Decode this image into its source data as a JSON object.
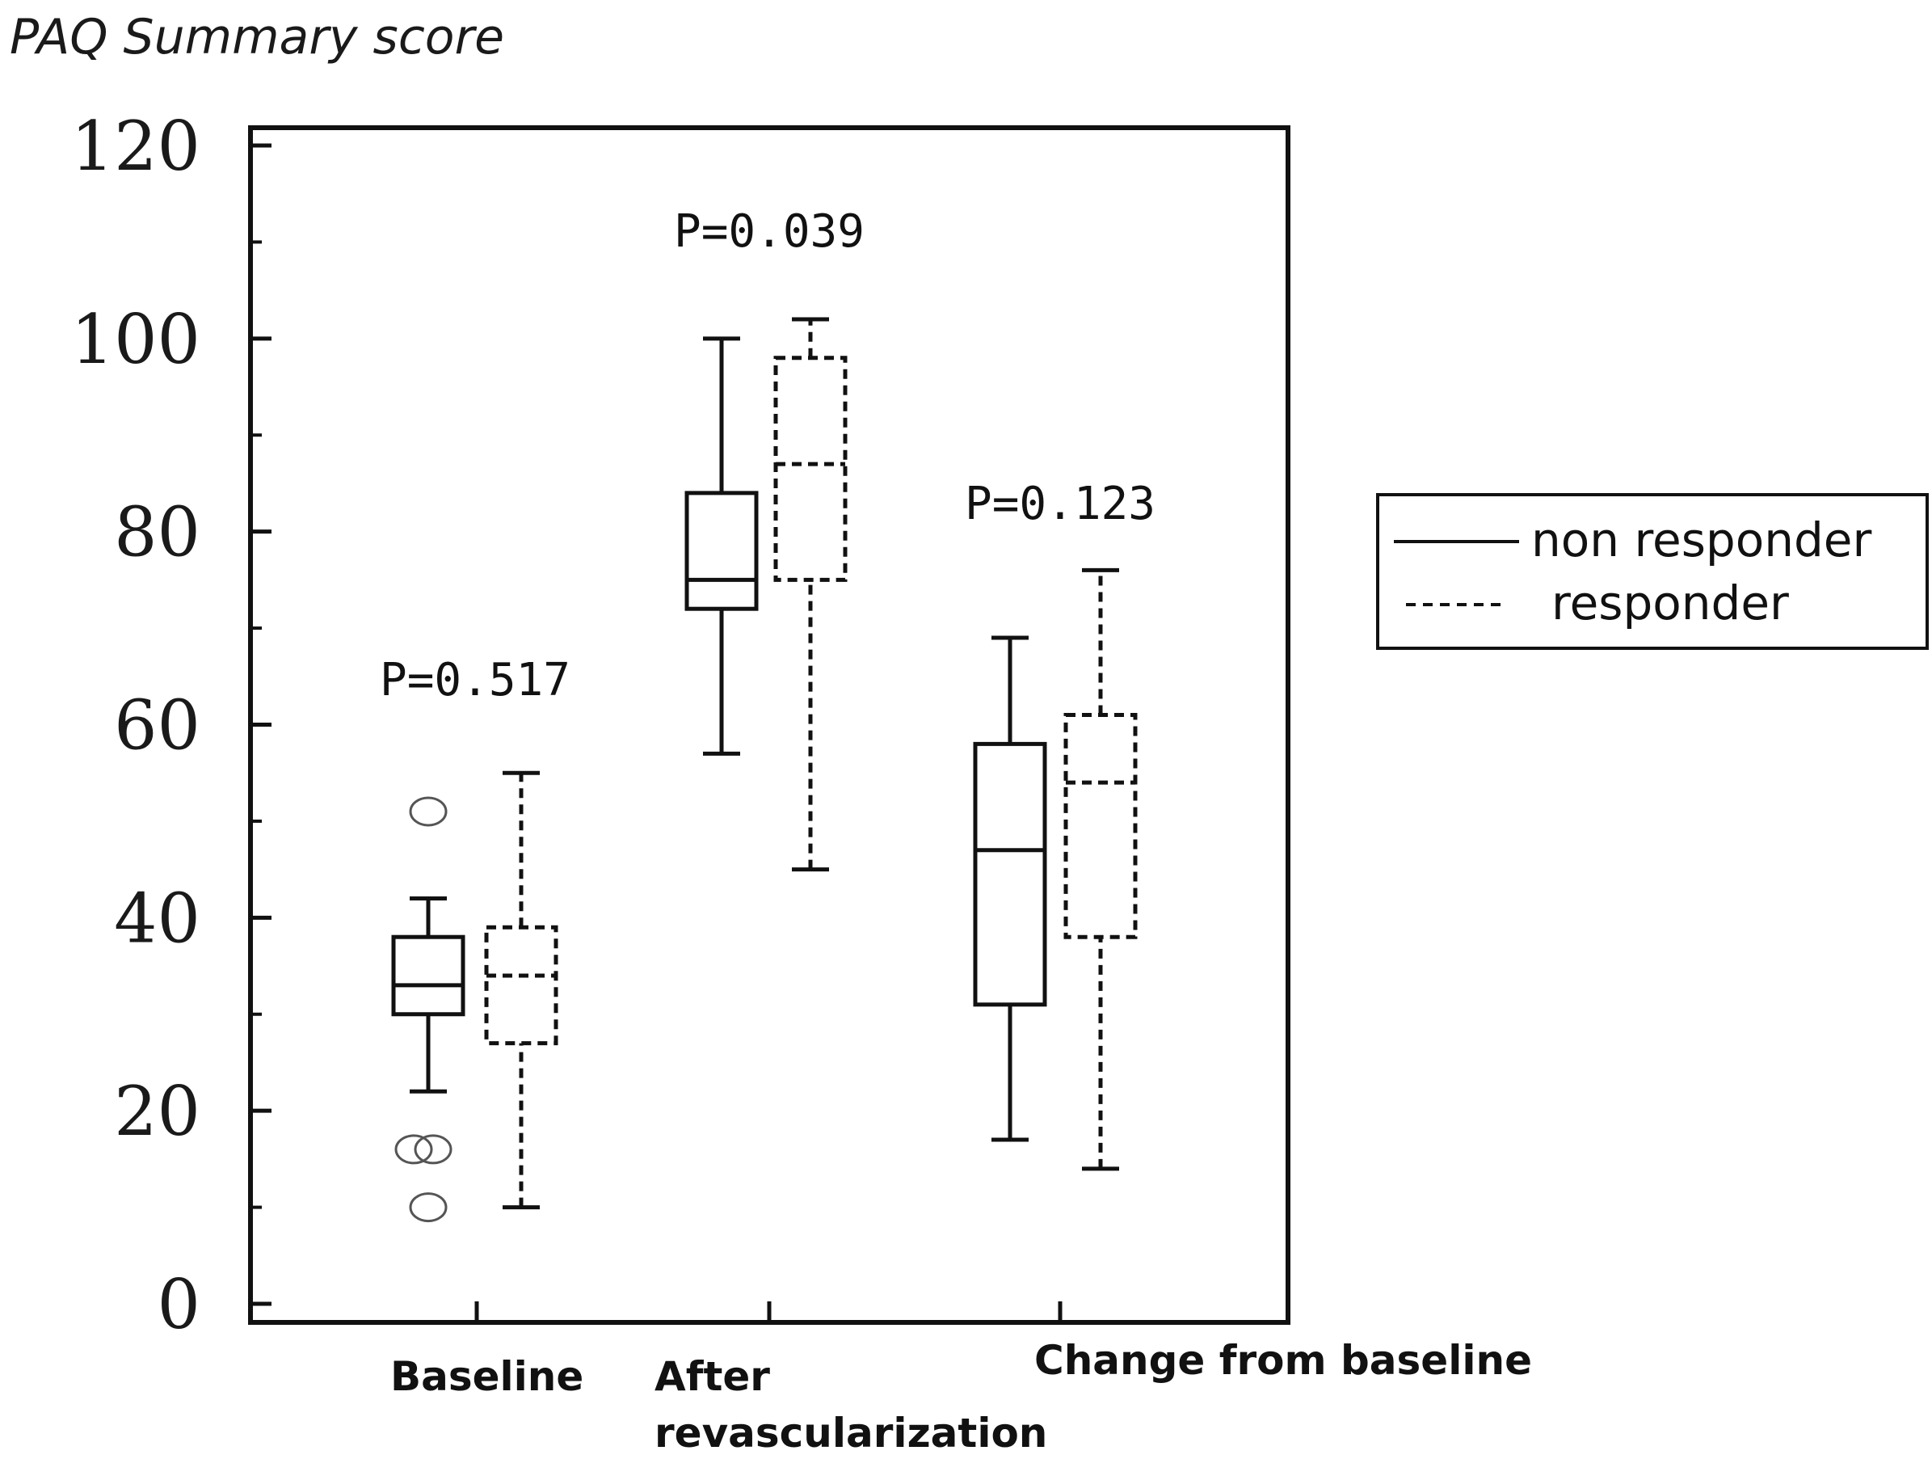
{
  "chart_data": {
    "type": "box",
    "ylabel": "PAQ Summary score",
    "ylim": [
      0,
      120
    ],
    "yticks": [
      "0",
      "20",
      "40",
      "60",
      "80",
      "100",
      "120"
    ],
    "categories": [
      "Baseline",
      "After\nrevascularization",
      "Change from baseline"
    ],
    "pvalues": [
      "P=0.517",
      "P=0.039",
      "P=0.123"
    ],
    "legend_position": "right",
    "series": [
      {
        "name": "non responder",
        "line_style": "solid",
        "boxes": [
          {
            "min": 22,
            "q1": 30,
            "median": 33,
            "q3": 38,
            "max": 42,
            "outliers": [
              51,
              16,
              16,
              10
            ]
          },
          {
            "min": 57,
            "q1": 72,
            "median": 75,
            "q3": 84,
            "max": 100,
            "outliers": []
          },
          {
            "min": 17,
            "q1": 31,
            "median": 47,
            "q3": 58,
            "max": 69,
            "outliers": []
          }
        ]
      },
      {
        "name": "responder",
        "line_style": "dashed",
        "boxes": [
          {
            "min": 10,
            "q1": 27,
            "median": 34,
            "q3": 39,
            "max": 55,
            "outliers": []
          },
          {
            "min": 45,
            "q1": 75,
            "median": 87,
            "q3": 98,
            "max": 102,
            "outliers": []
          },
          {
            "min": 14,
            "q1": 38,
            "median": 54,
            "q3": 61,
            "max": 76,
            "outliers": []
          }
        ]
      }
    ],
    "legend": [
      "non responder",
      "responder"
    ]
  },
  "colors": {
    "axis": "#111111",
    "box_stroke": "#111111",
    "tick_label": "#1a1a1a"
  }
}
